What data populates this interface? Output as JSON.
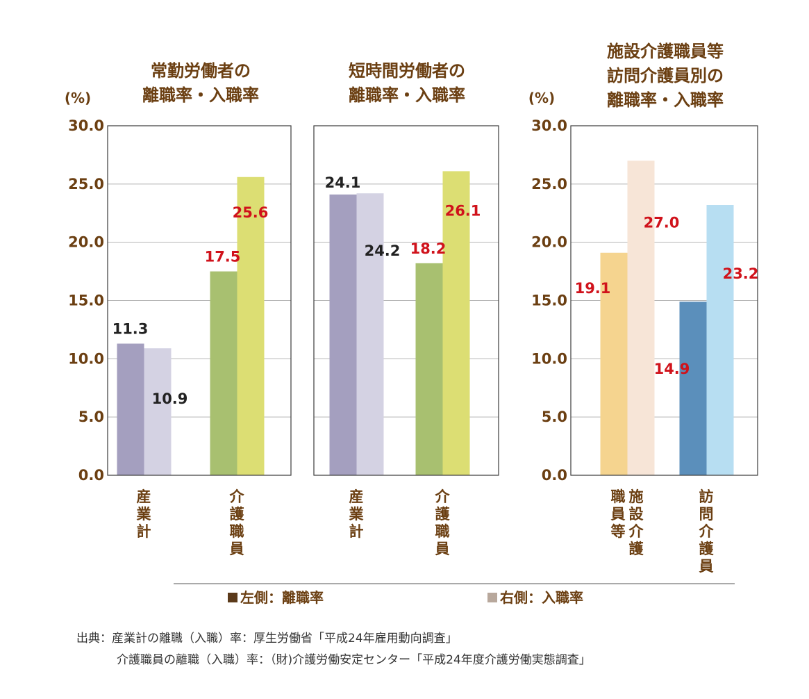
{
  "colors": {
    "title": "#6b3f12",
    "value_red": "#d0121b",
    "value_dark": "#222222",
    "legend_left": "#5b3a1a",
    "legend_right": "#b8a89c"
  },
  "legend": {
    "left_label": "左側：離職率",
    "right_label": "右側：入職率"
  },
  "source": {
    "line1": "出典：産業計の離職（入職）率：厚生労働省「平成24年雇用動向調査」",
    "line2": "介護職員の離職（入職）率：（財)介護労働安定センター「平成24年度介護労働実態調査」"
  },
  "chart_data": [
    {
      "type": "bar",
      "title_lines": [
        "常勤労働者の",
        "離職率・入職率"
      ],
      "unit": "(%)",
      "ylim": [
        0,
        30
      ],
      "yticks": [
        "0.0",
        "5.0",
        "10.0",
        "15.0",
        "20.0",
        "25.0",
        "30.0"
      ],
      "grid": true,
      "categories": [
        {
          "label_chars": [
            "産",
            "業",
            "計"
          ],
          "left": 11.3,
          "right": 10.9,
          "left_label": "11.3",
          "right_label": "10.9",
          "left_color": "#a49fbf",
          "right_color": "#d4d2e3",
          "left_label_color": "#222222",
          "right_label_color": "#222222"
        },
        {
          "label_chars": [
            "介",
            "護",
            "職",
            "員"
          ],
          "left": 17.5,
          "right": 25.6,
          "left_label": "17.5",
          "right_label": "25.6",
          "left_color": "#a8c070",
          "right_color": "#dcde73",
          "left_label_color": "#d0121b",
          "right_label_color": "#d0121b"
        }
      ]
    },
    {
      "type": "bar",
      "title_lines": [
        "短時間労働者の",
        "離職率・入職率"
      ],
      "unit": "",
      "ylim": [
        0,
        30
      ],
      "yticks": [],
      "grid": true,
      "categories": [
        {
          "label_chars": [
            "産",
            "業",
            "計"
          ],
          "left": 24.1,
          "right": 24.2,
          "left_label": "24.1",
          "right_label": "24.2",
          "left_color": "#a49fbf",
          "right_color": "#d4d2e3",
          "left_label_color": "#222222",
          "right_label_color": "#222222"
        },
        {
          "label_chars": [
            "介",
            "護",
            "職",
            "員"
          ],
          "left": 18.2,
          "right": 26.1,
          "left_label": "18.2",
          "right_label": "26.1",
          "left_color": "#a8c070",
          "right_color": "#dcde73",
          "left_label_color": "#d0121b",
          "right_label_color": "#d0121b"
        }
      ]
    },
    {
      "type": "bar",
      "title_lines": [
        "施設介護職員等",
        "訪問介護員別の",
        "離職率・入職率"
      ],
      "unit": "(%)",
      "ylim": [
        0,
        30
      ],
      "yticks": [
        "0.0",
        "5.0",
        "10.0",
        "15.0",
        "20.0",
        "25.0",
        "30.0"
      ],
      "grid": true,
      "categories": [
        {
          "label_columns": [
            [
              "施",
              "設",
              "介",
              "護"
            ],
            [
              "職",
              "員",
              "等"
            ]
          ],
          "left": 19.1,
          "right": 27.0,
          "left_label": "19.1",
          "right_label": "27.0",
          "left_color": "#f5d48f",
          "right_color": "#f7e5d7",
          "left_label_color": "#d0121b",
          "right_label_color": "#d0121b"
        },
        {
          "label_chars": [
            "訪",
            "問",
            "介",
            "護",
            "員"
          ],
          "left": 14.9,
          "right": 23.2,
          "left_label": "14.9",
          "right_label": "23.2",
          "left_color": "#5b8fbb",
          "right_color": "#b7def2",
          "left_label_color": "#d0121b",
          "right_label_color": "#d0121b"
        }
      ]
    }
  ]
}
